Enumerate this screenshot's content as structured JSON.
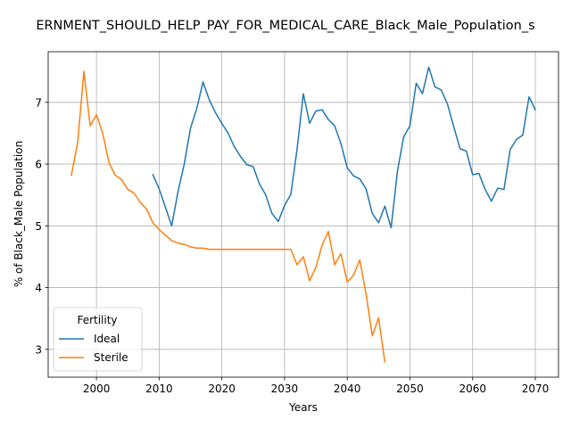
{
  "chart_data": {
    "type": "line",
    "title": "ERNMENT_SHOULD_HELP_PAY_FOR_MEDICAL_CARE_Black_Male_Population_s",
    "xlabel": "Years",
    "ylabel": "% of Black_Male Population",
    "xlim": [
      1992.3,
      2073.7
    ],
    "ylim": [
      2.55,
      7.82
    ],
    "xticks": [
      2000,
      2010,
      2020,
      2030,
      2040,
      2050,
      2060,
      2070
    ],
    "yticks": [
      3,
      4,
      5,
      6,
      7
    ],
    "grid": true,
    "legend": {
      "title": "Fertility",
      "placement": "lower-left"
    },
    "series": [
      {
        "name": "Ideal",
        "color": "#1f77b4",
        "x": [
          2009,
          2010,
          2011,
          2012,
          2013,
          2014,
          2015,
          2016,
          2017,
          2018,
          2019,
          2020,
          2021,
          2022,
          2023,
          2024,
          2025,
          2026,
          2027,
          2028,
          2029,
          2030,
          2031,
          2032,
          2033,
          2034,
          2035,
          2036,
          2037,
          2038,
          2039,
          2040,
          2041,
          2042,
          2043,
          2044,
          2045,
          2046,
          2047,
          2048,
          2049,
          2050,
          2051,
          2052,
          2053,
          2054,
          2055,
          2056,
          2057,
          2058,
          2059,
          2060,
          2061,
          2062,
          2063,
          2064,
          2065,
          2066,
          2067,
          2068,
          2069,
          2070
        ],
        "y": [
          5.83,
          5.6,
          5.3,
          5.0,
          5.55,
          6.0,
          6.58,
          6.9,
          7.33,
          7.04,
          6.83,
          6.66,
          6.5,
          6.28,
          6.12,
          5.99,
          5.96,
          5.68,
          5.5,
          5.2,
          5.07,
          5.33,
          5.51,
          6.24,
          7.14,
          6.66,
          6.86,
          6.88,
          6.72,
          6.62,
          6.33,
          5.94,
          5.81,
          5.76,
          5.6,
          5.2,
          5.05,
          5.32,
          4.97,
          5.88,
          6.44,
          6.62,
          7.31,
          7.14,
          7.57,
          7.25,
          7.2,
          6.97,
          6.6,
          6.25,
          6.21,
          5.83,
          5.85,
          5.59,
          5.4,
          5.61,
          5.59,
          6.24,
          6.4,
          6.47,
          7.09,
          6.88
        ]
      },
      {
        "name": "Sterile",
        "color": "#ff7f0e",
        "x": [
          1996,
          1997,
          1998,
          1999,
          2000,
          2001,
          2002,
          2003,
          2004,
          2005,
          2006,
          2007,
          2008,
          2009,
          2010,
          2011,
          2012,
          2013,
          2014,
          2015,
          2016,
          2017,
          2018,
          2019,
          2020,
          2021,
          2022,
          2023,
          2024,
          2025,
          2026,
          2027,
          2028,
          2029,
          2030,
          2031,
          2032,
          2033,
          2034,
          2035,
          2036,
          2037,
          2038,
          2039,
          2040,
          2041,
          2042,
          2043,
          2044,
          2045,
          2046
        ],
        "y": [
          5.82,
          6.35,
          7.5,
          6.62,
          6.8,
          6.5,
          6.02,
          5.82,
          5.75,
          5.59,
          5.53,
          5.38,
          5.27,
          5.05,
          4.94,
          4.85,
          4.76,
          4.72,
          4.7,
          4.66,
          4.64,
          4.64,
          4.62,
          4.62,
          4.62,
          4.62,
          4.62,
          4.62,
          4.62,
          4.62,
          4.62,
          4.62,
          4.62,
          4.62,
          4.62,
          4.62,
          4.37,
          4.5,
          4.11,
          4.33,
          4.69,
          4.91,
          4.37,
          4.55,
          4.09,
          4.2,
          4.45,
          3.9,
          3.22,
          3.51,
          2.8
        ]
      }
    ]
  }
}
